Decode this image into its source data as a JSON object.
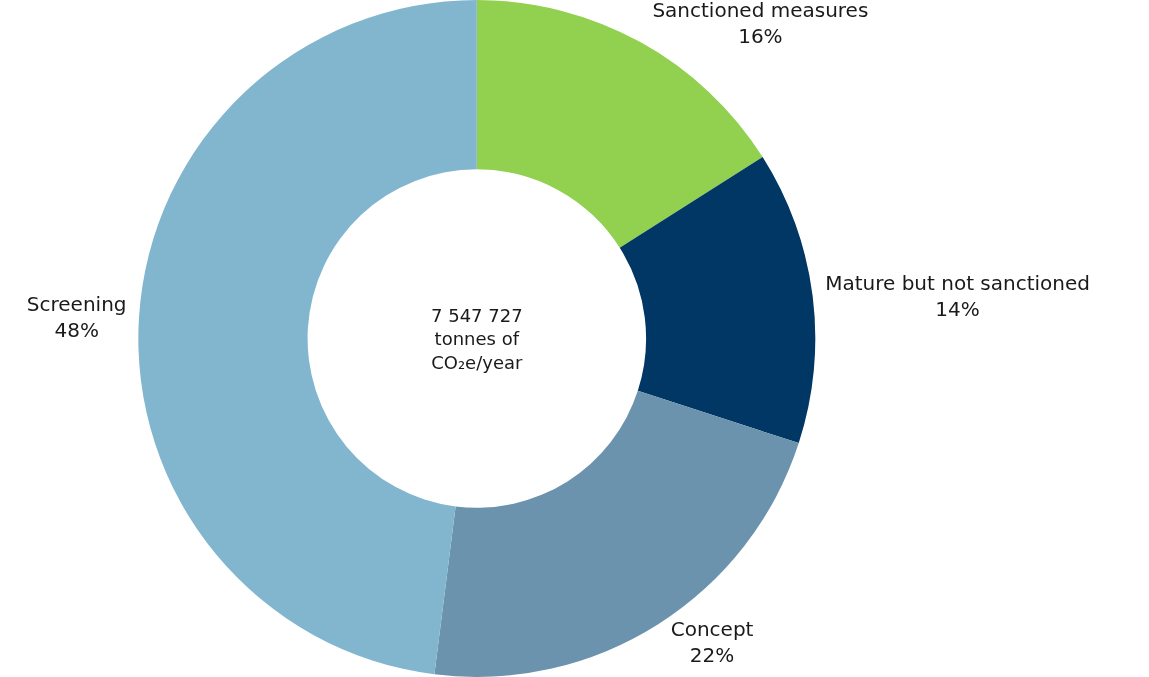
{
  "chart_data": {
    "type": "donut",
    "categories": [
      "Sanctioned measures",
      "Mature but not sanctioned",
      "Concept",
      "Screening"
    ],
    "values": [
      16,
      14,
      22,
      48
    ],
    "value_labels": [
      "16%",
      "14%",
      "22%",
      "48%"
    ],
    "colors": [
      "#92d050",
      "#003764",
      "#6b93ad",
      "#82b6cf"
    ],
    "annotations": [
      "7 547 727\ntonnes of\nCO₂e/year"
    ],
    "legend": false
  }
}
